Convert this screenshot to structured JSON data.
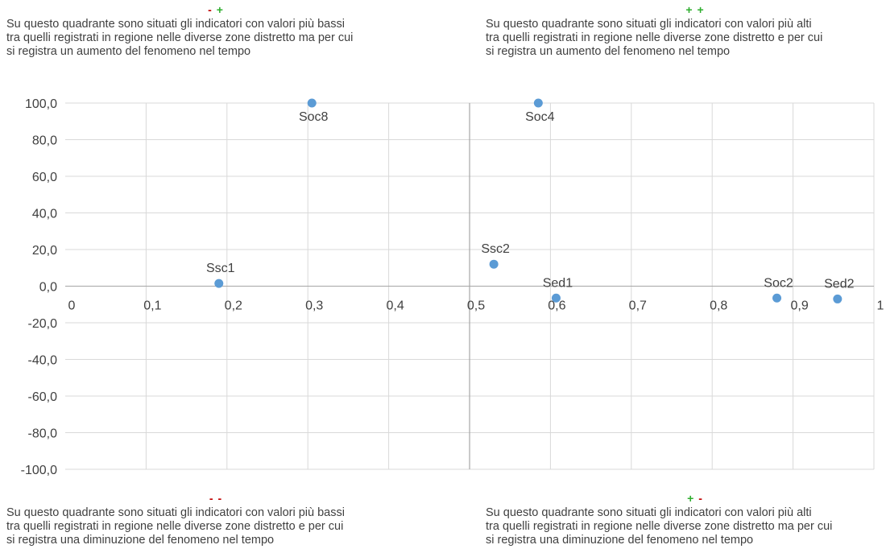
{
  "colors": {
    "minus": "#c00000",
    "plus": "#2eae2e",
    "point": "#5b9bd5",
    "grid": "#d9d9d9",
    "axis": "#a6a6a6",
    "text": "#404040"
  },
  "quadrants": {
    "top_left": {
      "signs": [
        {
          "s": "-",
          "c": "minus"
        },
        {
          "s": "+",
          "c": "plus"
        }
      ],
      "text": "Su questo quadrante sono situati gli indicatori con valori più bassi\ntra quelli registrati in regione nelle diverse zone distretto ma per cui\nsi registra un aumento del fenomeno nel tempo"
    },
    "top_right": {
      "signs": [
        {
          "s": "+",
          "c": "plus"
        },
        {
          "s": "+",
          "c": "plus"
        }
      ],
      "text": "Su questo quadrante sono situati gli indicatori con valori più alti\ntra quelli registrati in regione nelle diverse zone distretto e per cui\nsi registra un aumento del fenomeno nel tempo"
    },
    "bottom_left": {
      "signs": [
        {
          "s": "-",
          "c": "minus"
        },
        {
          "s": "-",
          "c": "minus"
        }
      ],
      "text": "Su questo quadrante sono situati gli indicatori con valori più bassi\ntra quelli registrati in regione nelle diverse zone distretto e per cui\nsi registra una diminuzione del fenomeno nel tempo"
    },
    "bottom_right": {
      "signs": [
        {
          "s": "+",
          "c": "plus"
        },
        {
          "s": "-",
          "c": "minus"
        }
      ],
      "text": "Su questo quadrante sono situati gli indicatori con valori più alti\ntra quelli registrati in regione nelle diverse zone distretto ma per cui\nsi registra una diminuzione del fenomeno nel tempo"
    }
  },
  "chart_data": {
    "type": "scatter",
    "title": "",
    "xlabel": "",
    "ylabel": "",
    "xlim": [
      0,
      1
    ],
    "ylim": [
      -100,
      100
    ],
    "x_ticks": [
      0,
      0.1,
      0.2,
      0.3,
      0.4,
      0.5,
      0.6,
      0.7,
      0.8,
      0.9,
      1
    ],
    "x_tick_labels": [
      "0",
      "0,1",
      "0,2",
      "0,3",
      "0,4",
      "0,5",
      "0,6",
      "0,7",
      "0,8",
      "0,9",
      "1"
    ],
    "y_ticks": [
      100,
      80,
      60,
      40,
      20,
      0,
      -20,
      -40,
      -60,
      -80,
      -100
    ],
    "y_tick_labels": [
      "100,0",
      "80,0",
      "60,0",
      "40,0",
      "20,0",
      "0,0",
      "-20,0",
      "-40,0",
      "-60,0",
      "-80,0",
      "-100,0"
    ],
    "grid": true,
    "reference_line_x": 0.5,
    "points": [
      {
        "label": "Ssc1",
        "x": 0.19,
        "y": 1.5,
        "label_pos": "above"
      },
      {
        "label": "Soc8",
        "x": 0.305,
        "y": 100,
        "label_pos": "below"
      },
      {
        "label": "Soc4",
        "x": 0.585,
        "y": 100,
        "label_pos": "below"
      },
      {
        "label": "Ssc2",
        "x": 0.53,
        "y": 12,
        "label_pos": "above"
      },
      {
        "label": "Sed1",
        "x": 0.607,
        "y": -6.5,
        "label_pos": "above"
      },
      {
        "label": "Soc2",
        "x": 0.88,
        "y": -6.5,
        "label_pos": "above"
      },
      {
        "label": "Sed2",
        "x": 0.955,
        "y": -7,
        "label_pos": "above"
      }
    ]
  }
}
